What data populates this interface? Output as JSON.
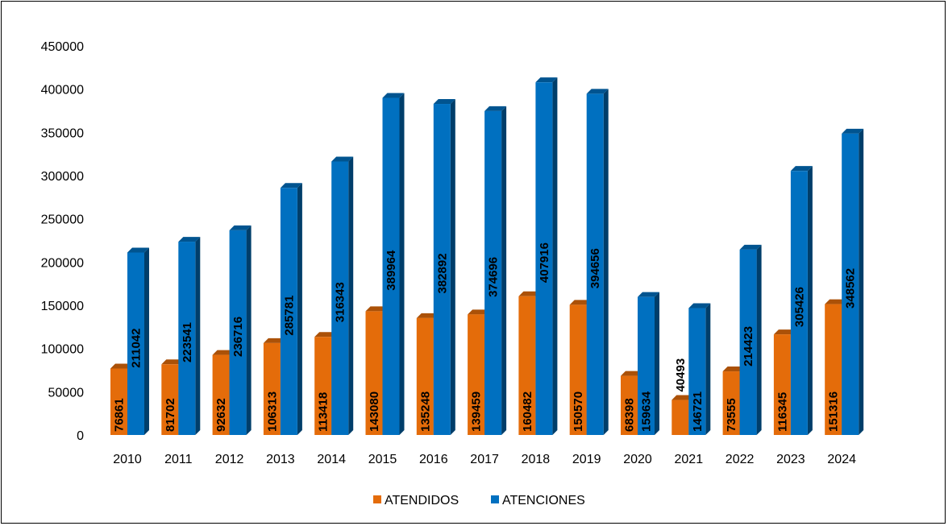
{
  "chart_data": {
    "type": "bar",
    "style": "3d-clustered-column",
    "categories": [
      "2010",
      "2011",
      "2012",
      "2013",
      "2014",
      "2015",
      "2016",
      "2017",
      "2018",
      "2019",
      "2020",
      "2021",
      "2022",
      "2023",
      "2024"
    ],
    "series": [
      {
        "name": "ATENDIDOS",
        "color": "#E46C0A",
        "values": [
          76861,
          81702,
          92632,
          106313,
          113418,
          143080,
          135248,
          139459,
          160482,
          150570,
          68398,
          40493,
          73555,
          116345,
          151316
        ]
      },
      {
        "name": "ATENCIONES",
        "color": "#0070C0",
        "values": [
          211042,
          223541,
          236716,
          285781,
          316343,
          389964,
          382892,
          374696,
          407916,
          394656,
          159634,
          146721,
          214423,
          305426,
          348562
        ]
      }
    ],
    "yticks": [
      0,
      50000,
      100000,
      150000,
      200000,
      250000,
      300000,
      350000,
      400000,
      450000
    ],
    "ylim": [
      0,
      450000
    ],
    "grid": false,
    "legend": "bottom-center",
    "title": "",
    "xlabel": "",
    "ylabel": ""
  }
}
